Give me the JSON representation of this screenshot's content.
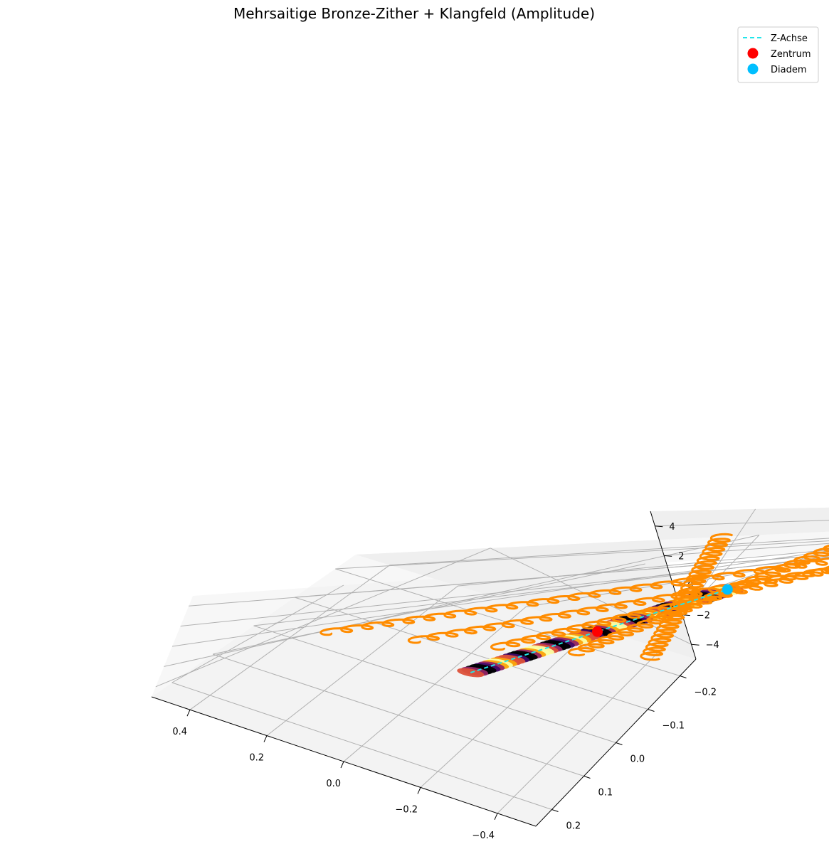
{
  "chart_data": {
    "type": "line3d",
    "title": "Mehrsaitige Bronze-Zither + Klangfeld (Amplitude)",
    "xlabel": "",
    "ylabel": "",
    "zlabel": "",
    "grid": true,
    "axes": {
      "x": {
        "ticks": [
          "0.4",
          "0.2",
          "0.0",
          "−0.2",
          "−0.4"
        ],
        "values": [
          0.4,
          0.2,
          0.0,
          -0.2,
          -0.4
        ]
      },
      "y": {
        "ticks": [
          "−0.2",
          "−0.1",
          "0.0",
          "0.1",
          "0.2"
        ],
        "values": [
          -0.2,
          -0.1,
          0.0,
          0.1,
          0.2
        ]
      },
      "z": {
        "ticks": [
          "4",
          "2",
          "0",
          "−2",
          "−4"
        ],
        "values": [
          4,
          2,
          0,
          -2,
          -4
        ]
      }
    },
    "legend": {
      "placement": "top-right",
      "entries": [
        {
          "label": "Z-Achse",
          "marker": "dashed-line",
          "color": "#22e5ea"
        },
        {
          "label": "Zentrum",
          "marker": "circle",
          "color": "#ff0000"
        },
        {
          "label": "Diadem",
          "marker": "circle",
          "color": "#00bfff"
        }
      ]
    },
    "strings": {
      "count": 5,
      "color": "#ff8c00",
      "z_range": [
        -4.5,
        4.5
      ]
    },
    "soundfield": {
      "colormap": "inferno",
      "colors": [
        "#000004",
        "#420a68",
        "#932667",
        "#dd513a",
        "#fca50a",
        "#fcffa4"
      ],
      "z_range": [
        -3.9,
        4.1
      ]
    },
    "points": [
      {
        "name": "Zentrum",
        "x": 0.0,
        "y": 0.0,
        "z": 0.0,
        "color": "#ff0000"
      },
      {
        "name": "Diadem",
        "x": 0.0,
        "y": 0.0,
        "z": 4.0,
        "color": "#00bfff"
      }
    ]
  }
}
